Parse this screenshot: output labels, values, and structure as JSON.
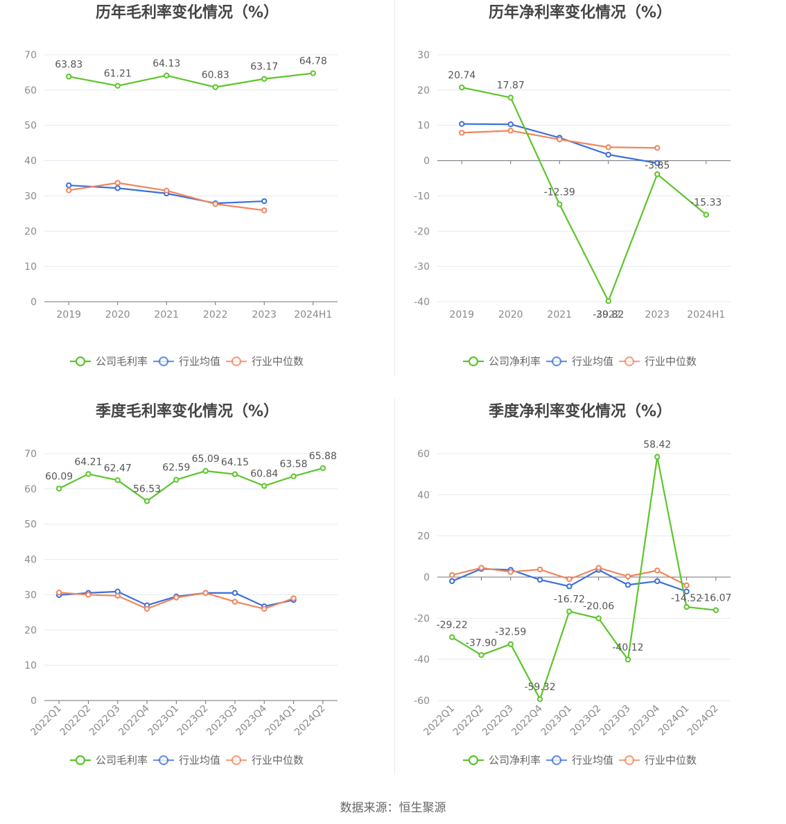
{
  "chart_data": [
    {
      "id": "annual-gross",
      "type": "line",
      "title": "历年毛利率变化情况（%）",
      "categories": [
        "2019",
        "2020",
        "2021",
        "2022",
        "2023",
        "2024H1"
      ],
      "ylim": [
        0,
        70
      ],
      "yticks": [
        0,
        10,
        20,
        30,
        40,
        50,
        60,
        70
      ],
      "zero_axis": false,
      "rotate_x": false,
      "series": [
        {
          "name": "公司毛利率",
          "color": "#5cc42a",
          "values": [
            63.83,
            61.21,
            64.13,
            60.83,
            63.17,
            64.78
          ],
          "labels": [
            "63.83",
            "61.21",
            "64.13",
            "60.83",
            "63.17",
            "64.78"
          ]
        },
        {
          "name": "行业均值",
          "color": "#3b6fdb",
          "values": [
            33.0,
            32.2,
            30.7,
            27.9,
            28.5,
            null
          ],
          "labels": []
        },
        {
          "name": "行业中位数",
          "color": "#f0855c",
          "values": [
            31.6,
            33.7,
            31.5,
            27.7,
            25.9,
            null
          ],
          "labels": []
        }
      ]
    },
    {
      "id": "annual-net",
      "type": "line",
      "title": "历年净利率变化情况（%）",
      "categories": [
        "2019",
        "2020",
        "2021",
        "2022",
        "2023",
        "2024H1"
      ],
      "ylim": [
        -40,
        30
      ],
      "yticks": [
        -40,
        -30,
        -20,
        -10,
        0,
        10,
        20,
        30
      ],
      "zero_axis": true,
      "rotate_x": false,
      "series": [
        {
          "name": "公司净利率",
          "color": "#5cc42a",
          "values": [
            20.74,
            17.87,
            -12.39,
            -39.82,
            -3.85,
            -15.33
          ],
          "labels": [
            "20.74",
            "17.87",
            "-12.39",
            "-39.82",
            "-3.85",
            "-15.33"
          ]
        },
        {
          "name": "行业均值",
          "color": "#3b6fdb",
          "values": [
            10.4,
            10.3,
            6.5,
            1.7,
            -0.7,
            null
          ],
          "labels": []
        },
        {
          "name": "行业中位数",
          "color": "#f0855c",
          "values": [
            7.9,
            8.5,
            6.0,
            3.8,
            3.6,
            null
          ],
          "labels": []
        }
      ]
    },
    {
      "id": "quarterly-gross",
      "type": "line",
      "title": "季度毛利率变化情况（%）",
      "categories": [
        "2022Q1",
        "2022Q2",
        "2022Q3",
        "2022Q4",
        "2023Q1",
        "2023Q2",
        "2023Q3",
        "2023Q4",
        "2024Q1",
        "2024Q2"
      ],
      "ylim": [
        0,
        70
      ],
      "yticks": [
        0,
        10,
        20,
        30,
        40,
        50,
        60,
        70
      ],
      "zero_axis": false,
      "rotate_x": true,
      "series": [
        {
          "name": "公司毛利率",
          "color": "#5cc42a",
          "values": [
            60.09,
            64.21,
            62.47,
            56.53,
            62.59,
            65.09,
            64.15,
            60.84,
            63.58,
            65.88
          ],
          "labels": [
            "60.09",
            "64.21",
            "62.47",
            "56.53",
            "62.59",
            "65.09",
            "64.15",
            "60.84",
            "63.58",
            "65.88"
          ]
        },
        {
          "name": "行业均值",
          "color": "#3b6fdb",
          "values": [
            29.9,
            30.5,
            30.9,
            27.0,
            29.5,
            30.5,
            30.5,
            26.7,
            28.5,
            null
          ],
          "labels": []
        },
        {
          "name": "行业中位数",
          "color": "#f0855c",
          "values": [
            30.6,
            30.0,
            29.7,
            26.0,
            29.2,
            30.5,
            28.0,
            26.0,
            29.0,
            null
          ],
          "labels": []
        }
      ]
    },
    {
      "id": "quarterly-net",
      "type": "line",
      "title": "季度净利率变化情况（%）",
      "categories": [
        "2022Q1",
        "2022Q2",
        "2022Q3",
        "2022Q4",
        "2023Q1",
        "2023Q2",
        "2023Q3",
        "2023Q4",
        "2024Q1",
        "2024Q2"
      ],
      "ylim": [
        -60,
        60
      ],
      "yticks": [
        -60,
        -40,
        -20,
        0,
        20,
        40,
        60
      ],
      "zero_axis": true,
      "rotate_x": true,
      "series": [
        {
          "name": "公司净利率",
          "color": "#5cc42a",
          "values": [
            -29.22,
            -37.9,
            -32.59,
            -59.32,
            -16.72,
            -20.06,
            -40.12,
            58.42,
            -14.52,
            -16.07
          ],
          "labels": [
            "-29.22",
            "-37.90",
            "-32.59",
            "-59.32",
            "-16.72",
            "-20.06",
            "-40.12",
            "58.42",
            "-14.52",
            "-16.07"
          ]
        },
        {
          "name": "行业均值",
          "color": "#3b6fdb",
          "values": [
            -2.0,
            4.0,
            3.5,
            -1.3,
            -4.5,
            3.5,
            -3.8,
            -2.0,
            -7.0,
            null
          ],
          "labels": []
        },
        {
          "name": "行业中位数",
          "color": "#f0855c",
          "values": [
            1.0,
            4.5,
            2.5,
            3.7,
            -1.0,
            4.5,
            0.3,
            3.2,
            -4.0,
            null
          ],
          "labels": []
        }
      ]
    }
  ],
  "source": "数据来源：恒生聚源"
}
